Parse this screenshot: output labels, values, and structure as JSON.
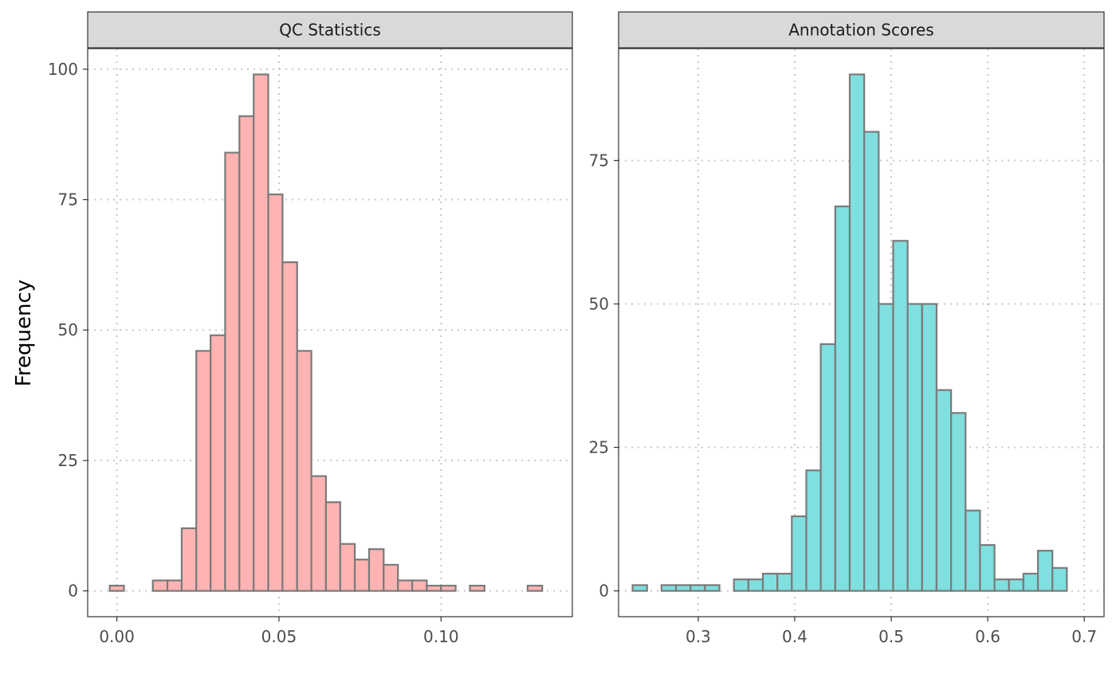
{
  "chart_data": {
    "type": "bar",
    "ylabel": "Frequency",
    "colors": {
      "strip_bg": "#d9d9d9",
      "bar_outline": "#7a7a7a",
      "grid": "#c8c8c8",
      "panel_border": "#333333"
    },
    "panels": [
      {
        "title": "QC Statistics",
        "fill": "#ffb3b3",
        "xlim": [
          -0.009,
          0.1405
        ],
        "ylim": [
          -4.95,
          103.95
        ],
        "x_ticks": [
          0.0,
          0.05,
          0.1
        ],
        "x_tick_labels": [
          "0.00",
          "0.05",
          "0.10"
        ],
        "y_ticks": [
          0,
          25,
          50,
          75,
          100
        ],
        "y_tick_labels": [
          "0",
          "25",
          "50",
          "75",
          "100"
        ],
        "bins": [
          {
            "x0": -0.0022,
            "x1": 0.0022,
            "count": 1
          },
          {
            "x0": 0.0022,
            "x1": 0.0067,
            "count": 0
          },
          {
            "x0": 0.0067,
            "x1": 0.0111,
            "count": 0
          },
          {
            "x0": 0.0111,
            "x1": 0.0156,
            "count": 2
          },
          {
            "x0": 0.0156,
            "x1": 0.02,
            "count": 2
          },
          {
            "x0": 0.02,
            "x1": 0.0245,
            "count": 12
          },
          {
            "x0": 0.0245,
            "x1": 0.0289,
            "count": 46
          },
          {
            "x0": 0.0289,
            "x1": 0.0334,
            "count": 49
          },
          {
            "x0": 0.0334,
            "x1": 0.0378,
            "count": 84
          },
          {
            "x0": 0.0378,
            "x1": 0.0422,
            "count": 91
          },
          {
            "x0": 0.0422,
            "x1": 0.0467,
            "count": 99
          },
          {
            "x0": 0.0467,
            "x1": 0.0511,
            "count": 76
          },
          {
            "x0": 0.0511,
            "x1": 0.0556,
            "count": 63
          },
          {
            "x0": 0.0556,
            "x1": 0.06,
            "count": 46
          },
          {
            "x0": 0.06,
            "x1": 0.0645,
            "count": 22
          },
          {
            "x0": 0.0645,
            "x1": 0.0689,
            "count": 17
          },
          {
            "x0": 0.0689,
            "x1": 0.0734,
            "count": 9
          },
          {
            "x0": 0.0734,
            "x1": 0.0778,
            "count": 6
          },
          {
            "x0": 0.0778,
            "x1": 0.0823,
            "count": 8
          },
          {
            "x0": 0.0823,
            "x1": 0.0867,
            "count": 5
          },
          {
            "x0": 0.0867,
            "x1": 0.0911,
            "count": 2
          },
          {
            "x0": 0.0911,
            "x1": 0.0956,
            "count": 2
          },
          {
            "x0": 0.0956,
            "x1": 0.1,
            "count": 1
          },
          {
            "x0": 0.1,
            "x1": 0.1045,
            "count": 1
          },
          {
            "x0": 0.1045,
            "x1": 0.1089,
            "count": 0
          },
          {
            "x0": 0.1089,
            "x1": 0.1134,
            "count": 1
          },
          {
            "x0": 0.1134,
            "x1": 0.1178,
            "count": 0
          },
          {
            "x0": 0.1178,
            "x1": 0.1223,
            "count": 0
          },
          {
            "x0": 0.1223,
            "x1": 0.1267,
            "count": 0
          },
          {
            "x0": 0.1267,
            "x1": 0.1312,
            "count": 1
          }
        ]
      },
      {
        "title": "Annotation Scores",
        "fill": "#80dfdf",
        "xlim": [
          0.2175,
          0.7205
        ],
        "ylim": [
          -4.5,
          94.5
        ],
        "x_ticks": [
          0.3,
          0.4,
          0.5,
          0.6,
          0.7
        ],
        "x_tick_labels": [
          "0.3",
          "0.4",
          "0.5",
          "0.6",
          "0.7"
        ],
        "y_ticks": [
          0,
          25,
          50,
          75
        ],
        "y_tick_labels": [
          "0",
          "25",
          "50",
          "75"
        ],
        "bins": [
          {
            "x0": 0.232,
            "x1": 0.247,
            "count": 1
          },
          {
            "x0": 0.247,
            "x1": 0.262,
            "count": 0
          },
          {
            "x0": 0.262,
            "x1": 0.277,
            "count": 1
          },
          {
            "x0": 0.277,
            "x1": 0.292,
            "count": 1
          },
          {
            "x0": 0.292,
            "x1": 0.307,
            "count": 1
          },
          {
            "x0": 0.307,
            "x1": 0.322,
            "count": 1
          },
          {
            "x0": 0.322,
            "x1": 0.337,
            "count": 0
          },
          {
            "x0": 0.337,
            "x1": 0.352,
            "count": 2
          },
          {
            "x0": 0.352,
            "x1": 0.367,
            "count": 2
          },
          {
            "x0": 0.367,
            "x1": 0.382,
            "count": 3
          },
          {
            "x0": 0.382,
            "x1": 0.397,
            "count": 3
          },
          {
            "x0": 0.397,
            "x1": 0.412,
            "count": 13
          },
          {
            "x0": 0.412,
            "x1": 0.427,
            "count": 21
          },
          {
            "x0": 0.427,
            "x1": 0.442,
            "count": 43
          },
          {
            "x0": 0.442,
            "x1": 0.457,
            "count": 67
          },
          {
            "x0": 0.457,
            "x1": 0.472,
            "count": 90
          },
          {
            "x0": 0.472,
            "x1": 0.487,
            "count": 80
          },
          {
            "x0": 0.487,
            "x1": 0.502,
            "count": 50
          },
          {
            "x0": 0.502,
            "x1": 0.517,
            "count": 61
          },
          {
            "x0": 0.517,
            "x1": 0.532,
            "count": 50
          },
          {
            "x0": 0.532,
            "x1": 0.547,
            "count": 50
          },
          {
            "x0": 0.547,
            "x1": 0.562,
            "count": 35
          },
          {
            "x0": 0.562,
            "x1": 0.577,
            "count": 31
          },
          {
            "x0": 0.577,
            "x1": 0.592,
            "count": 14
          },
          {
            "x0": 0.592,
            "x1": 0.607,
            "count": 8
          },
          {
            "x0": 0.607,
            "x1": 0.622,
            "count": 2
          },
          {
            "x0": 0.622,
            "x1": 0.637,
            "count": 2
          },
          {
            "x0": 0.637,
            "x1": 0.652,
            "count": 3
          },
          {
            "x0": 0.652,
            "x1": 0.667,
            "count": 7
          },
          {
            "x0": 0.667,
            "x1": 0.682,
            "count": 4
          }
        ]
      }
    ]
  }
}
